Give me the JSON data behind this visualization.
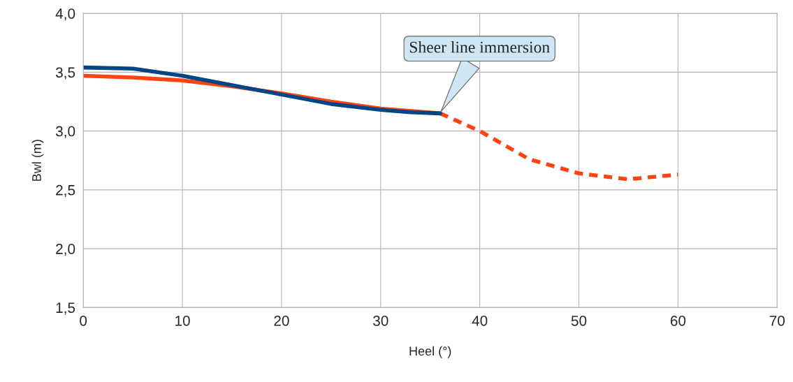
{
  "chart_data": {
    "type": "line",
    "xlabel": "Heel (°)",
    "ylabel": "Bwl (m)",
    "xlim": [
      0,
      70
    ],
    "xticks": [
      0,
      10,
      20,
      30,
      40,
      50,
      60,
      70
    ],
    "ylim": [
      1.5,
      4.0
    ],
    "yticks": [
      {
        "value": 1.5,
        "label": "1,5"
      },
      {
        "value": 2.0,
        "label": "2,0"
      },
      {
        "value": 2.5,
        "label": "2,5"
      },
      {
        "value": 3.0,
        "label": "3,0"
      },
      {
        "value": 3.5,
        "label": "3,5"
      },
      {
        "value": 4.0,
        "label": "4,0"
      }
    ],
    "grid": true,
    "legend": false,
    "marker": "none",
    "series": [
      {
        "color": "#ff4411",
        "line_style": "solid",
        "x": [
          0,
          5,
          10,
          15,
          20,
          25,
          30,
          36
        ],
        "values": [
          3.47,
          3.455,
          3.43,
          3.38,
          3.32,
          3.25,
          3.19,
          3.15
        ]
      },
      {
        "color": "#ff4411",
        "line_style": "dashed",
        "x": [
          36,
          40,
          45,
          50,
          55,
          60
        ],
        "values": [
          3.15,
          3.0,
          2.76,
          2.64,
          2.59,
          2.63
        ]
      },
      {
        "color": "#004586",
        "line_style": "solid",
        "x": [
          0,
          5,
          10,
          15,
          20,
          25,
          30,
          33,
          36
        ],
        "values": [
          3.54,
          3.53,
          3.47,
          3.39,
          3.31,
          3.23,
          3.18,
          3.16,
          3.15
        ]
      }
    ],
    "annotations": [
      "Sheer line immersion"
    ]
  }
}
